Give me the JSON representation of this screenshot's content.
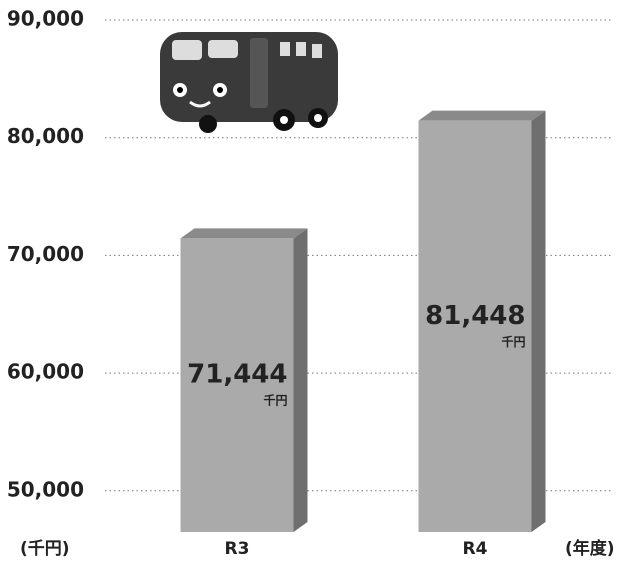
{
  "chart_data": {
    "type": "bar3d",
    "categories": [
      "R3",
      "R4"
    ],
    "values": [
      71444,
      81448
    ],
    "value_labels": [
      "71,444",
      "81,448"
    ],
    "value_unit": "千円",
    "y_axis_label": "(千円)",
    "x_axis_label": "(年度)",
    "color": "#aaaaaa",
    "ylim": [
      46500,
      90000
    ],
    "yticks": [
      {
        "value": 50000,
        "label": "50,000"
      },
      {
        "value": 60000,
        "label": "60,000"
      },
      {
        "value": 70000,
        "label": "70,000"
      },
      {
        "value": 80000,
        "label": "80,000"
      },
      {
        "value": 90000,
        "label": "90,000"
      }
    ],
    "grid": true
  }
}
